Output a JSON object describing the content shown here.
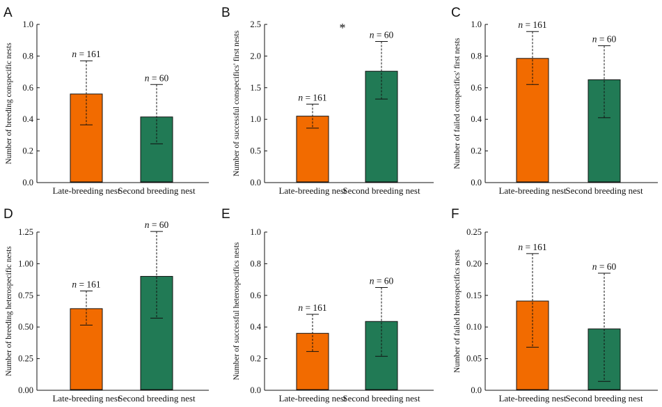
{
  "colors": {
    "late": "#f26b00",
    "second": "#217a55"
  },
  "chart_data": [
    {
      "panel": "A",
      "type": "bar",
      "categories": [
        "Late-breeding nest",
        "Second breeding nest"
      ],
      "values": [
        0.56,
        0.415
      ],
      "upper": [
        0.77,
        0.62
      ],
      "lower": [
        0.365,
        0.245
      ],
      "n_labels": [
        "n = 161",
        "n = 60"
      ],
      "ylabel": "Number of breeding conspecific nests",
      "ylim": [
        0,
        1.0
      ],
      "yticks": [
        "0.0",
        "0.2",
        "0.4",
        "0.6",
        "0.8",
        "1.0"
      ],
      "ytick_values": [
        0,
        0.2,
        0.4,
        0.6,
        0.8,
        1.0
      ],
      "annotation": ""
    },
    {
      "panel": "B",
      "type": "bar",
      "categories": [
        "Late-breeding nest",
        "Second breeding nest"
      ],
      "values": [
        1.05,
        1.76
      ],
      "upper": [
        1.24,
        2.23
      ],
      "lower": [
        0.86,
        1.32
      ],
      "n_labels": [
        "n = 161",
        "n = 60"
      ],
      "ylabel": "Number of successful conspecifics' first nests",
      "ylim": [
        0,
        2.5
      ],
      "yticks": [
        "0.0",
        "0.5",
        "1.0",
        "1.5",
        "2.0",
        "2.5"
      ],
      "ytick_values": [
        0,
        0.5,
        1.0,
        1.5,
        2.0,
        2.5
      ],
      "annotation": "*"
    },
    {
      "panel": "C",
      "type": "bar",
      "categories": [
        "Late-breeding nest",
        "Second breeding nest"
      ],
      "values": [
        0.785,
        0.65
      ],
      "upper": [
        0.955,
        0.865
      ],
      "lower": [
        0.62,
        0.41
      ],
      "n_labels": [
        "n = 161",
        "n = 60"
      ],
      "ylabel": "Number of failed conspecifics' first nests",
      "ylim": [
        0,
        1.0
      ],
      "yticks": [
        "0.0",
        "0.2",
        "0.4",
        "0.6",
        "0.8",
        "1.0"
      ],
      "ytick_values": [
        0,
        0.2,
        0.4,
        0.6,
        0.8,
        1.0
      ],
      "annotation": ""
    },
    {
      "panel": "D",
      "type": "bar",
      "categories": [
        "Late-breeding nest",
        "Second breeding nest"
      ],
      "values": [
        0.645,
        0.9
      ],
      "upper": [
        0.785,
        1.255
      ],
      "lower": [
        0.515,
        0.57
      ],
      "n_labels": [
        "n = 161",
        "n = 60"
      ],
      "ylabel": "Number of breeding heterospecific nests",
      "ylim": [
        0,
        1.25
      ],
      "yticks": [
        "0.00",
        "0.25",
        "0.50",
        "0.75",
        "1.00",
        "1.25"
      ],
      "ytick_values": [
        0,
        0.25,
        0.5,
        0.75,
        1.0,
        1.25
      ],
      "annotation": ""
    },
    {
      "panel": "E",
      "type": "bar",
      "categories": [
        "Late-breeding nest",
        "Second breeding nest"
      ],
      "values": [
        0.36,
        0.435
      ],
      "upper": [
        0.48,
        0.65
      ],
      "lower": [
        0.245,
        0.215
      ],
      "n_labels": [
        "n = 161",
        "n = 60"
      ],
      "ylabel": "Number of successful  heterospecifics nests",
      "ylim": [
        0,
        1.0
      ],
      "yticks": [
        "0.0",
        "0.2",
        "0.4",
        "0.6",
        "0.8",
        "1.0"
      ],
      "ytick_values": [
        0,
        0.2,
        0.4,
        0.6,
        0.8,
        1.0
      ],
      "annotation": ""
    },
    {
      "panel": "F",
      "type": "bar",
      "categories": [
        "Late-breeding nest",
        "Second breeding nest"
      ],
      "values": [
        0.141,
        0.097
      ],
      "upper": [
        0.216,
        0.185
      ],
      "lower": [
        0.068,
        0.014
      ],
      "n_labels": [
        "n = 161",
        "n = 60"
      ],
      "ylabel": "Number of failed heterospecifics nests",
      "ylim": [
        0,
        0.25
      ],
      "yticks": [
        "0.0",
        "0.05",
        "0.10",
        "0.15",
        "0.20",
        "0.25"
      ],
      "ytick_values": [
        0,
        0.05,
        0.1,
        0.15,
        0.2,
        0.25
      ],
      "annotation": ""
    }
  ]
}
